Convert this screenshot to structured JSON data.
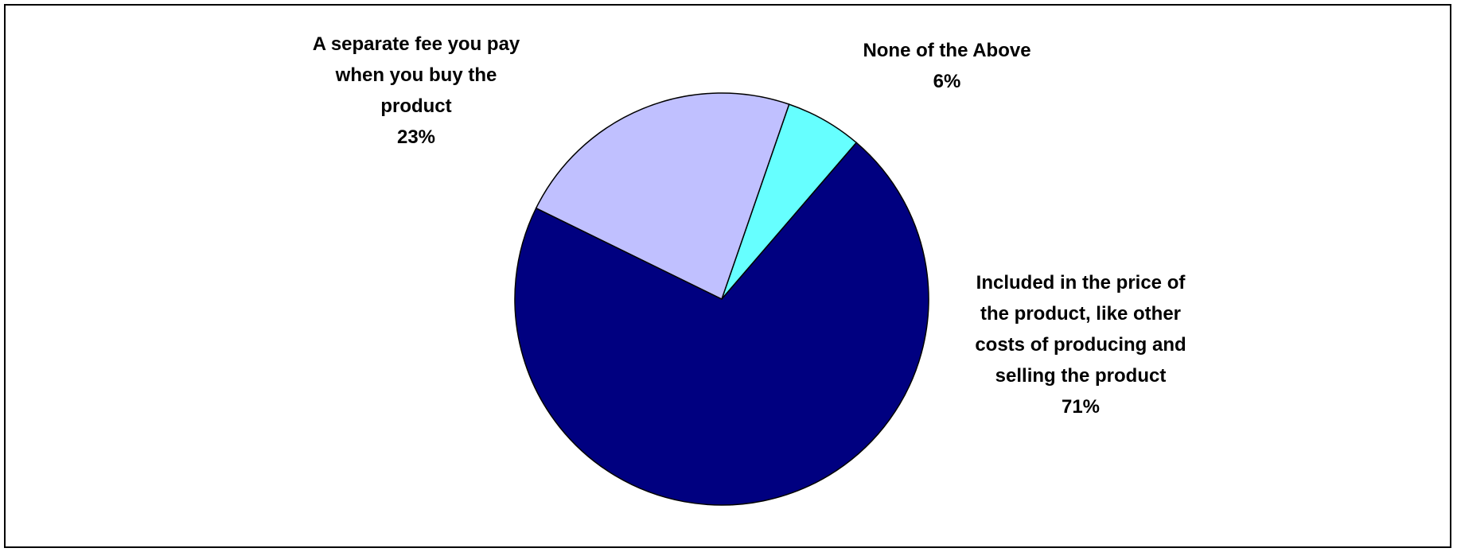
{
  "chart_data": {
    "type": "pie",
    "title": "",
    "start_angle_deg": 71,
    "direction": "clockwise",
    "slices": [
      {
        "label_lines": [
          "None of the Above"
        ],
        "percent_label": "6%",
        "value": 6,
        "color": "#66FFFF"
      },
      {
        "label_lines": [
          "Included in the price of",
          "the product, like other",
          "costs of producing and",
          "selling the product"
        ],
        "percent_label": "71%",
        "value": 71,
        "color": "#000080"
      },
      {
        "label_lines": [
          "A separate fee you pay",
          "when you buy the",
          "product"
        ],
        "percent_label": "23%",
        "value": 23,
        "color": "#C0C0FF"
      }
    ]
  }
}
